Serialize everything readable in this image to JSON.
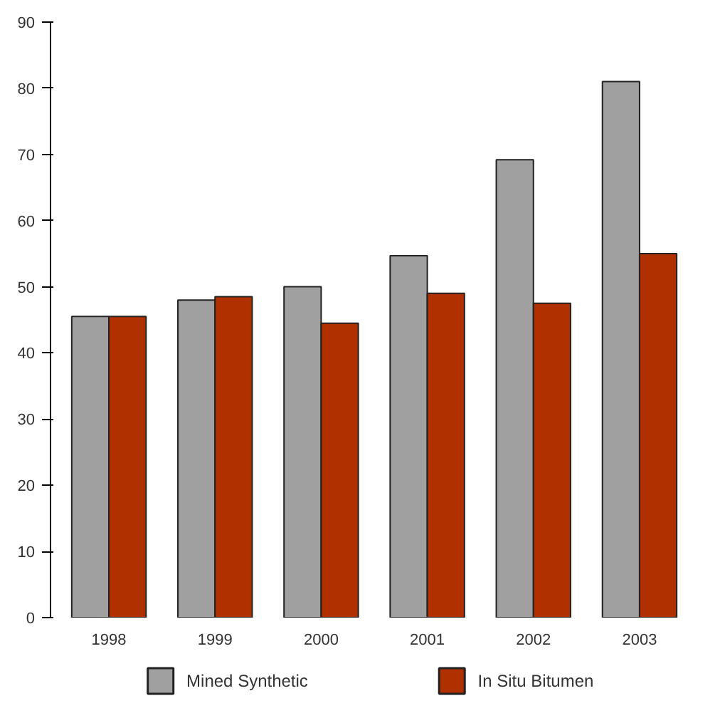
{
  "chart_data": {
    "type": "bar",
    "categories": [
      "1998",
      "1999",
      "2000",
      "2001",
      "2002",
      "2003"
    ],
    "series": [
      {
        "name": "Mined Synthetic",
        "color": "#a0a0a0",
        "values": [
          45.5,
          48,
          50,
          54.7,
          69.2,
          81
        ]
      },
      {
        "name": "In Situ Bitumen",
        "color": "#b03000",
        "values": [
          45.5,
          48.5,
          44.5,
          49,
          47.5,
          55
        ]
      }
    ],
    "ylim": [
      0,
      90
    ],
    "yticks": [
      0,
      10,
      20,
      30,
      40,
      50,
      60,
      70,
      80,
      90
    ],
    "grid": false,
    "legend": "bottom"
  }
}
